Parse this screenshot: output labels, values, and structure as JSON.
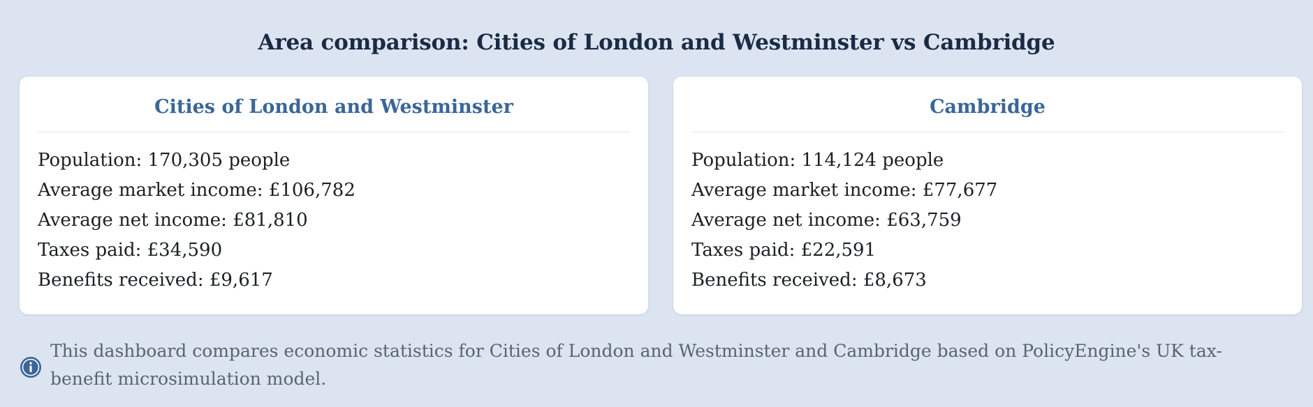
{
  "page": {
    "title": "Area comparison: Cities of London and Westminster vs Cambridge"
  },
  "areas": [
    {
      "name": "Cities of London and Westminster",
      "stats": [
        "Population: 170,305 people",
        "Average market income: £106,782",
        "Average net income: £81,810",
        "Taxes paid: £34,590",
        "Benefits received: £9,617"
      ]
    },
    {
      "name": "Cambridge",
      "stats": [
        "Population: 114,124 people",
        "Average market income: £77,677",
        "Average net income: £63,759",
        "Taxes paid: £22,591",
        "Benefits received: £8,673"
      ]
    }
  ],
  "info": {
    "icon": "info-icon",
    "text": "This dashboard compares economic statistics for Cities of London and Westminster and Cambridge based on PolicyEngine's UK tax-benefit microsimulation model."
  },
  "colors": {
    "background": "#dbe4f0",
    "title": "#1b2a45",
    "card_title": "#3b6697",
    "info_text": "#5a6470",
    "info_icon": "#3b6697"
  }
}
